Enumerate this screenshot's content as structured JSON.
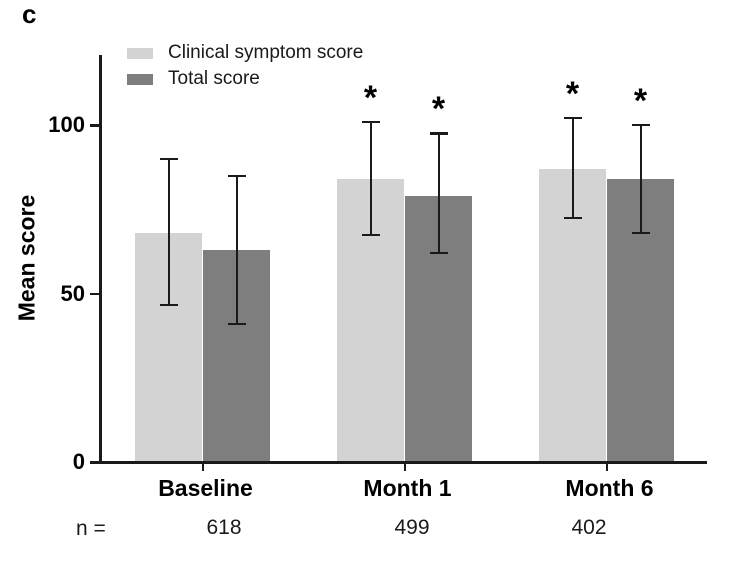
{
  "panel": {
    "label": "c"
  },
  "chart_data": {
    "type": "bar",
    "title": "",
    "categories": [
      "Baseline",
      "Month 1",
      "Month 6"
    ],
    "series": [
      {
        "name": "Clinical symptom score",
        "color": "#d3d3d3",
        "values": [
          68,
          84,
          87
        ],
        "error_low": [
          46.5,
          67.5,
          72.5
        ],
        "error_high": [
          90,
          101,
          102
        ],
        "significance": [
          "",
          "*",
          "*"
        ]
      },
      {
        "name": "Total score",
        "color": "#7e7e7e",
        "values": [
          63,
          79,
          84
        ],
        "error_low": [
          41,
          62,
          68
        ],
        "error_high": [
          85,
          97.5,
          100
        ],
        "significance": [
          "",
          "*",
          "*"
        ]
      }
    ],
    "xlabel": "",
    "ylabel": "Mean score",
    "yticks": [
      0,
      50,
      100
    ],
    "ylim": [
      0,
      120
    ],
    "grid": false,
    "legend_position": "top-left",
    "axis_color": "#1a1a1a",
    "significance_marker": "*",
    "n_label": "n =",
    "n_values": [
      "618",
      "499",
      "402"
    ]
  }
}
